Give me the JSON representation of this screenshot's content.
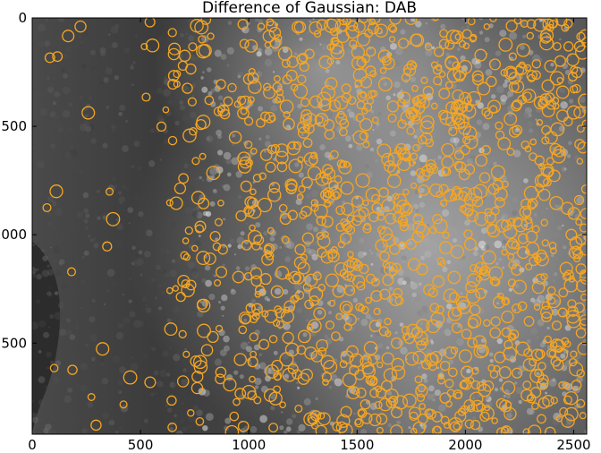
{
  "title": "Difference of Gaussian: DAB",
  "x_ticks": [
    {
      "value": 0,
      "label": "0"
    },
    {
      "value": 500,
      "label": "500"
    },
    {
      "value": 1000,
      "label": "1000"
    },
    {
      "value": 1500,
      "label": "1500"
    },
    {
      "value": 2000,
      "label": "2000"
    },
    {
      "value": 2500,
      "label": "2500"
    }
  ],
  "y_ticks": [
    {
      "value": 0,
      "label": "0"
    },
    {
      "value": 500,
      "label": "500"
    },
    {
      "value": 1000,
      "label": "1000"
    },
    {
      "value": 1500,
      "label": "1500"
    }
  ],
  "x_range": [
    0,
    2560
  ],
  "y_range": [
    0,
    1920
  ],
  "colors": {
    "blob_outline": "#f5a623",
    "background_dark": "#3a3a3a",
    "stroma_light": "#8a8a8a"
  }
}
